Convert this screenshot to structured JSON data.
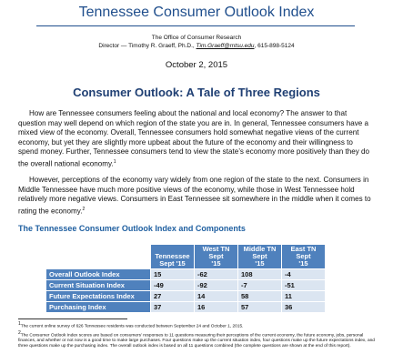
{
  "header": {
    "title": "Tennessee Consumer Outlook Index",
    "office": "The Office of Consumer Research",
    "director": {
      "before": "Director — Timothy R. Graeff, Ph.D., ",
      "email": "Tim.Graeff@mtsu.edu",
      "after": ", 615-898-5124"
    },
    "date": "October 2, 2015"
  },
  "article": {
    "heading": "Consumer Outlook:  A Tale of Three Regions",
    "paragraphs": [
      {
        "text": "How are Tennessee consumers feeling about the national and local economy?  The answer to that question may well depend on which region of the state you are in.  In general, Tennessee consumers have a mixed view of the economy.  Overall, Tennessee consumers hold somewhat negative views of the current economy, but yet they are slightly more upbeat about the future of the economy and their willingness to spend money.  Further, Tennessee consumers tend to view the state’s economy more positively than they do the overall national economy.",
        "note": "1"
      },
      {
        "text": "However, perceptions of the economy vary widely from one region of the state to the next.  Consumers in Middle Tennessee have much more positive views of the economy, while those in West Tennessee hold relatively more negative views.  Consumers in East Tennessee sit somewhere in the middle when it comes to rating the economy.",
        "note": "2"
      }
    ]
  },
  "table": {
    "title": "The Tennessee Consumer Outlook Index and Components",
    "columns": [
      [
        "Tennessee",
        "Sept '15"
      ],
      [
        "West TN",
        "Sept",
        "'15"
      ],
      [
        "Middle TN",
        "Sept",
        "'15"
      ],
      [
        "East TN",
        "Sept",
        "'15"
      ]
    ],
    "rows": [
      [
        "Overall Outlook Index",
        15,
        -62,
        108,
        -4
      ],
      [
        "Current Situation Index",
        -49,
        -92,
        -7,
        -51
      ],
      [
        "Future Expectations Index",
        27,
        14,
        58,
        11
      ],
      [
        "Purchasing Index",
        37,
        16,
        57,
        36
      ]
    ]
  },
  "footnotes": [
    {
      "mark": "1",
      "text": "The current online survey of 626 Tennessee residents was conducted between September 24 and October 1, 2015."
    },
    {
      "mark": "2",
      "text": "The Consumer Outlook Index scores are based on consumers’ responses to 11 questions measuring their perceptions of the current economy, the future economy, jobs, personal finances, and whether or not now is a good time to make large purchases.  Four questions make up the current situation index, four questions make up the future expectations index, and three questions make up the purchasing index.  The overall outlook index is based on all 11 questions combined (the complete questions are shown at the end of this report)."
    }
  ]
}
